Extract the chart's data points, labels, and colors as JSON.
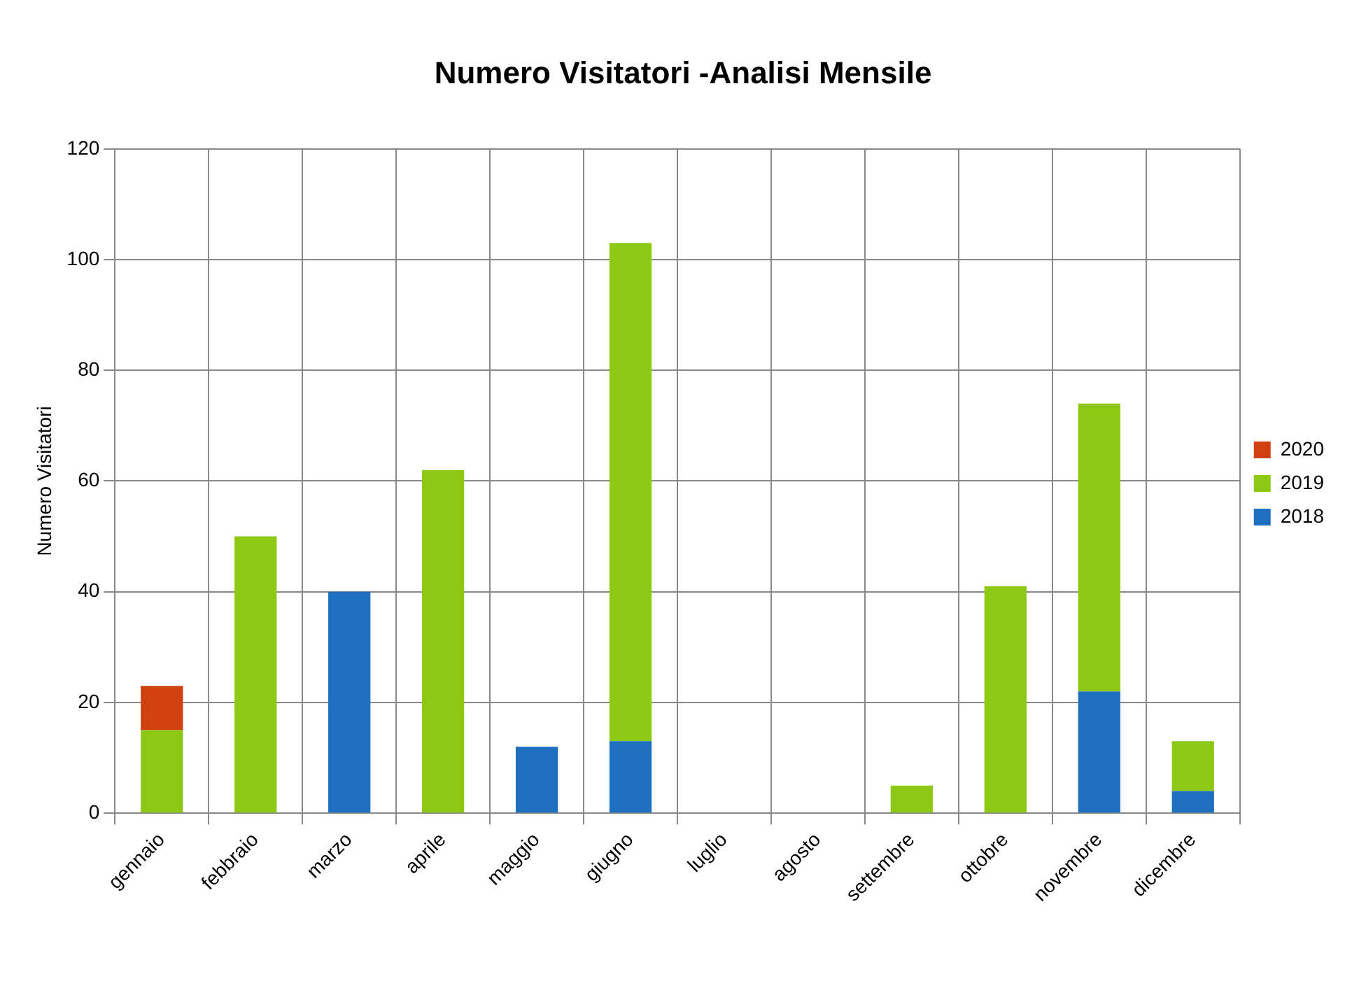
{
  "chart_data": {
    "type": "bar",
    "title": "Numero Visitatori -Analisi Mensile",
    "ylabel": "Numero Visitatori",
    "categories": [
      "gennaio",
      "febbraio",
      "marzo",
      "aprile",
      "maggio",
      "giugno",
      "luglio",
      "agosto",
      "settembre",
      "ottobre",
      "novembre",
      "dicembre"
    ],
    "series": [
      {
        "name": "2018",
        "color": "#1f6fc0",
        "values": [
          0,
          0,
          40,
          0,
          12,
          13,
          0,
          0,
          0,
          0,
          22,
          4
        ]
      },
      {
        "name": "2019",
        "color": "#8cc814",
        "values": [
          15,
          50,
          0,
          62,
          0,
          90,
          0,
          0,
          5,
          41,
          52,
          9
        ]
      },
      {
        "name": "2020",
        "color": "#d04010",
        "values": [
          8,
          0,
          0,
          0,
          0,
          0,
          0,
          0,
          0,
          0,
          0,
          0
        ]
      }
    ],
    "stacked": true,
    "ylim": [
      0,
      120
    ],
    "yticks": [
      0,
      20,
      40,
      60,
      80,
      100,
      120
    ],
    "grid": true,
    "legend": "right"
  }
}
